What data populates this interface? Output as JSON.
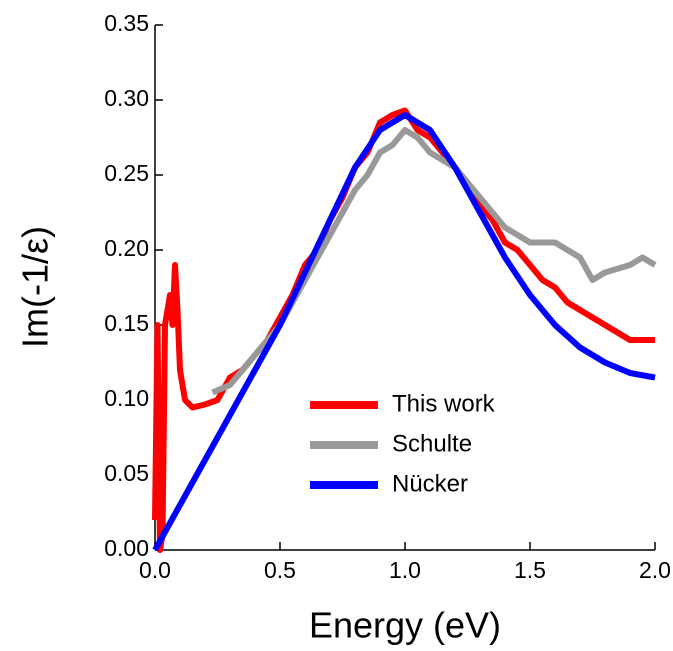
{
  "chart_data": {
    "type": "line",
    "xlabel": "Energy (eV)",
    "ylabel": "Im(-1/ε)",
    "xlim": [
      0,
      2
    ],
    "ylim": [
      0,
      0.35
    ],
    "xticks": [
      {
        "value": 0,
        "label": "0.0"
      },
      0.5,
      {
        "value": 1,
        "label": "1.0"
      },
      1.5,
      {
        "value": 2,
        "label": "2.0"
      }
    ],
    "yticks": [
      {
        "value": 0,
        "label": "0.00"
      },
      0.05,
      {
        "value": 0.1,
        "label": "0.10"
      },
      0.15,
      {
        "value": 0.2,
        "label": "0.20"
      },
      0.25,
      {
        "value": 0.3,
        "label": "0.30"
      },
      0.35
    ],
    "legend": "lower-center",
    "series": [
      {
        "name": "This work",
        "color": "#ff0000",
        "x": [
          0,
          0.01,
          0.02,
          0.03,
          0.04,
          0.05,
          0.06,
          0.07,
          0.08,
          0.09,
          0.1,
          0.12,
          0.15,
          0.2,
          0.25,
          0.3,
          0.35,
          0.4,
          0.45,
          0.5,
          0.55,
          0.6,
          0.65,
          0.7,
          0.75,
          0.8,
          0.85,
          0.9,
          0.95,
          1.0,
          1.05,
          1.1,
          1.15,
          1.2,
          1.25,
          1.3,
          1.35,
          1.4,
          1.45,
          1.5,
          1.55,
          1.6,
          1.65,
          1.7,
          1.75,
          1.8,
          1.85,
          1.9,
          1.95,
          2.0
        ],
        "values": [
          0.02,
          0.15,
          0.0,
          0.01,
          0.15,
          0.16,
          0.17,
          0.15,
          0.19,
          0.16,
          0.12,
          0.1,
          0.095,
          0.097,
          0.1,
          0.115,
          0.12,
          0.13,
          0.14,
          0.155,
          0.17,
          0.19,
          0.2,
          0.22,
          0.235,
          0.255,
          0.265,
          0.285,
          0.29,
          0.293,
          0.28,
          0.275,
          0.265,
          0.255,
          0.245,
          0.23,
          0.22,
          0.205,
          0.2,
          0.19,
          0.18,
          0.175,
          0.165,
          0.16,
          0.155,
          0.15,
          0.145,
          0.14,
          0.14,
          0.14
        ]
      },
      {
        "name": "Schulte",
        "color": "#999999",
        "x": [
          0.23,
          0.3,
          0.4,
          0.5,
          0.6,
          0.7,
          0.8,
          0.85,
          0.9,
          0.95,
          1.0,
          1.05,
          1.1,
          1.2,
          1.3,
          1.4,
          1.5,
          1.6,
          1.7,
          1.75,
          1.8,
          1.9,
          1.95,
          2.0
        ],
        "values": [
          0.105,
          0.11,
          0.13,
          0.15,
          0.18,
          0.21,
          0.24,
          0.25,
          0.265,
          0.27,
          0.28,
          0.275,
          0.265,
          0.255,
          0.235,
          0.215,
          0.205,
          0.205,
          0.195,
          0.18,
          0.185,
          0.19,
          0.195,
          0.19
        ]
      },
      {
        "name": "Nücker",
        "color": "#0000ff",
        "x": [
          0,
          0.1,
          0.2,
          0.3,
          0.4,
          0.5,
          0.6,
          0.7,
          0.8,
          0.9,
          1.0,
          1.1,
          1.2,
          1.3,
          1.4,
          1.5,
          1.6,
          1.7,
          1.8,
          1.9,
          2.0
        ],
        "values": [
          0,
          0.03,
          0.06,
          0.09,
          0.12,
          0.15,
          0.185,
          0.22,
          0.255,
          0.28,
          0.29,
          0.28,
          0.255,
          0.225,
          0.195,
          0.17,
          0.15,
          0.135,
          0.125,
          0.118,
          0.115
        ]
      }
    ]
  }
}
